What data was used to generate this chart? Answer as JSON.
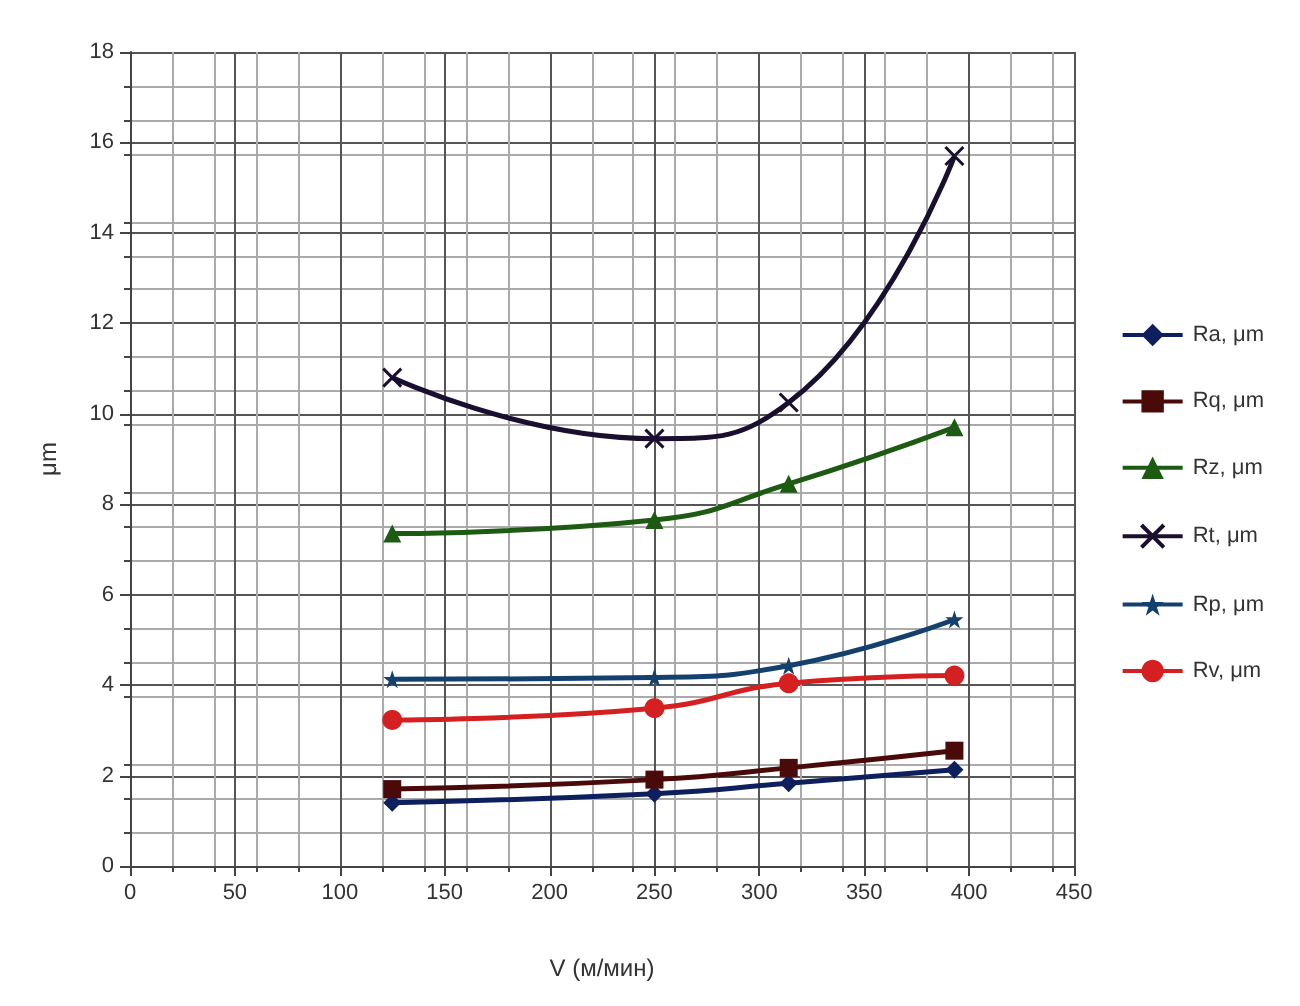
{
  "chart_data": {
    "type": "line",
    "xlabel": "V (м/мин)",
    "ylabel": "μm",
    "xlim": [
      0,
      450
    ],
    "xticks": [
      0,
      50,
      100,
      150,
      200,
      250,
      300,
      350,
      400,
      450
    ],
    "ylim": [
      0,
      18
    ],
    "yticks": [
      0,
      2,
      4,
      6,
      8,
      10,
      12,
      14,
      16,
      18
    ],
    "grid": true,
    "legend": "right",
    "x": [
      125,
      250,
      314,
      393
    ],
    "series": [
      {
        "name": "Ra, μm",
        "color": "#0d1f5c",
        "marker": "diamond",
        "values": [
          1.4,
          1.6,
          1.83,
          2.13
        ]
      },
      {
        "name": "Rq, μm",
        "color": "#4a0a0a",
        "marker": "square",
        "values": [
          1.7,
          1.91,
          2.17,
          2.55
        ]
      },
      {
        "name": "Rz, μm",
        "color": "#1d5a12",
        "marker": "triangle",
        "values": [
          7.35,
          7.65,
          8.45,
          9.7
        ]
      },
      {
        "name": "Rt, μm",
        "color": "#1a0f2e",
        "marker": "cross",
        "values": [
          10.8,
          9.45,
          10.25,
          15.7
        ]
      },
      {
        "name": "Rp, μm",
        "color": "#14406e",
        "marker": "star",
        "values": [
          4.13,
          4.17,
          4.43,
          5.45
        ]
      },
      {
        "name": "Rv, μm",
        "color": "#d42020",
        "marker": "circle",
        "values": [
          3.23,
          3.49,
          4.04,
          4.21
        ]
      }
    ]
  }
}
